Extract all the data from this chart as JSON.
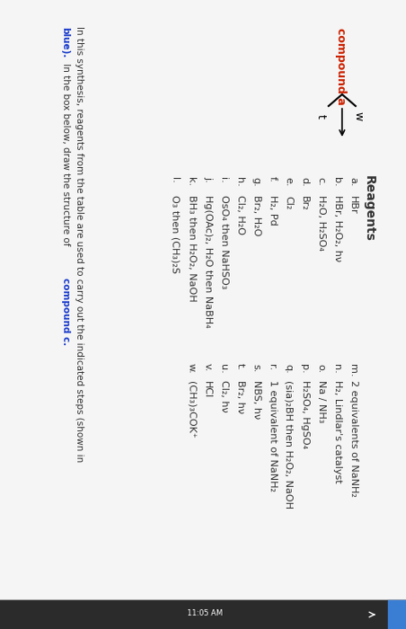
{
  "bg_main": "#e8e8e8",
  "bg_white": "#f5f5f5",
  "top_bar_color": "#2b2b2b",
  "blue_dot_color": "#3a7ed4",
  "compound_a_color": "#cc2200",
  "normal_text_color": "#333333",
  "blue_text_color": "#1a3bcc",
  "compound_a_label": "compound a",
  "arrow_label_top": "w",
  "arrow_label_bottom": "t",
  "reagents_title": "Reagents",
  "reagents_left": [
    [
      "a",
      "HBr"
    ],
    [
      "b",
      "HBr, H₂O₂, hν"
    ],
    [
      "c",
      "H₂O, H₂SO₄"
    ],
    [
      "d",
      "Br₂"
    ],
    [
      "e",
      "Cl₂"
    ],
    [
      "f",
      "H₂, Pd"
    ],
    [
      "g",
      "Br₂, H₂O"
    ],
    [
      "h",
      "Cl₂, H₂O"
    ],
    [
      "i",
      "OsO₄ then NaHSO₃"
    ],
    [
      "j",
      "Hg(OAc)₂, H₂O then NaBH₄"
    ],
    [
      "k",
      "BH₃ then H₂O₂, NaOH"
    ],
    [
      "l",
      "O₃ then (CH₃)₂S"
    ]
  ],
  "reagents_right": [
    [
      "m",
      "2 equivalents of NaNH₂"
    ],
    [
      "n",
      "H₂, Lindlar's catalyst"
    ],
    [
      "o",
      "Na / NH₃"
    ],
    [
      "p",
      "H₂SO₄, HgSO₄"
    ],
    [
      "q",
      "(sia)₂BH then H₂O₂, NaOH"
    ],
    [
      "r",
      "1 equivalent of NaNH₂"
    ],
    [
      "s",
      "NBS, hν"
    ],
    [
      "t",
      "Br₂, hν"
    ],
    [
      "u",
      "Cl₂, hν"
    ],
    [
      "v",
      "HCl"
    ],
    [
      "w",
      "(CH₃)₃COK⁺"
    ]
  ],
  "bottom_line1": "In this synthesis, reagents from the table are used to carry out the indicated steps (shown in",
  "bottom_line2_normal": "blue). In the box below, draw the structure of ",
  "bottom_line2_bold": "compound c.",
  "time_text": "11:05 AM"
}
